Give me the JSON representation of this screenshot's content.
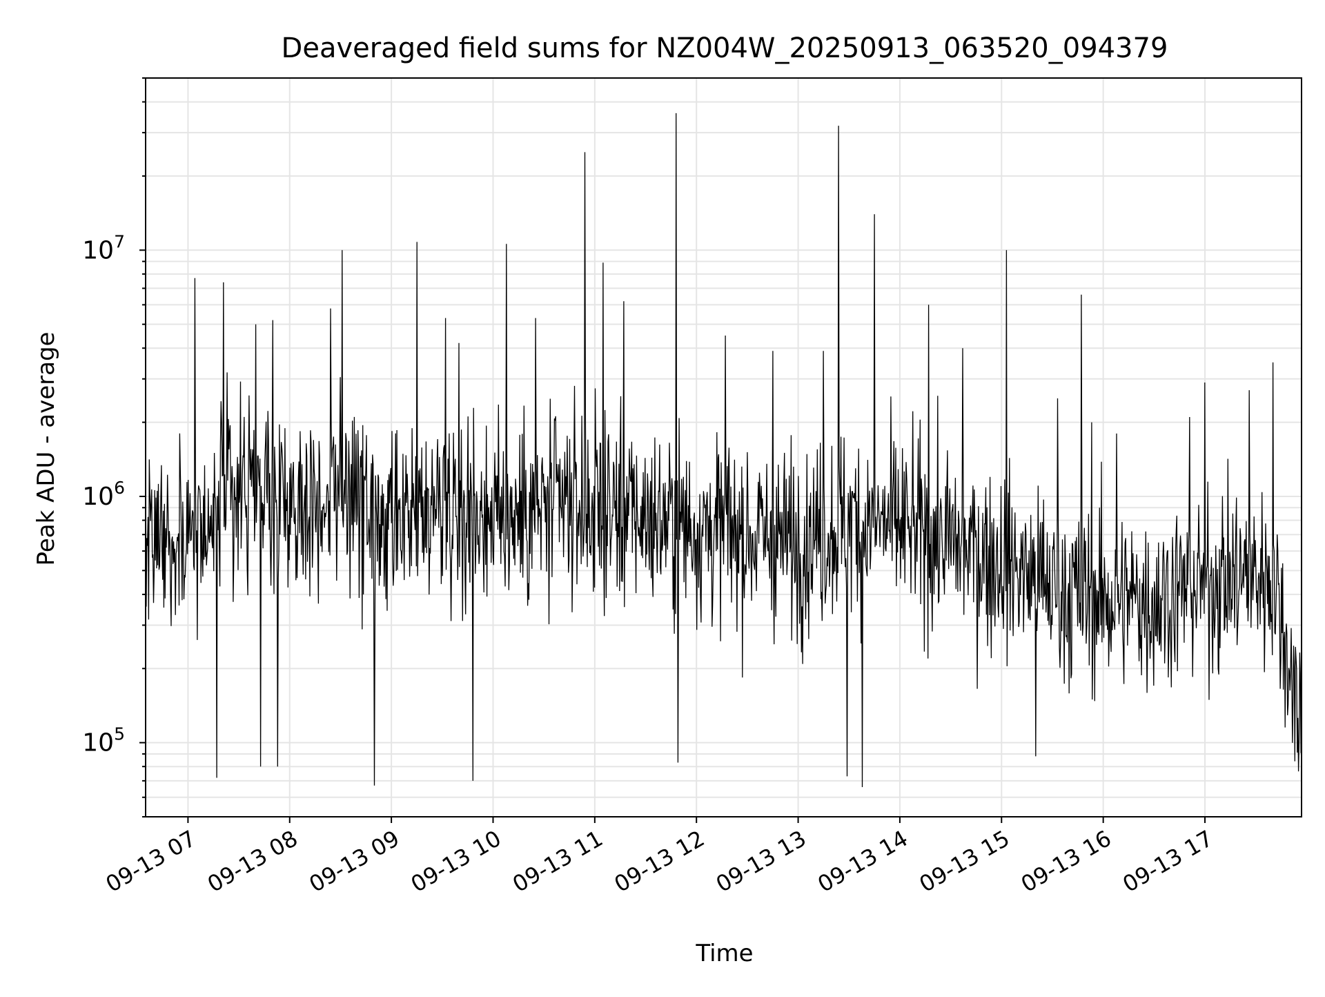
{
  "chart_data": {
    "type": "line",
    "title": "Deaveraged field sums for NZ004W_20250913_063520_094379",
    "xlabel": "Time",
    "ylabel": "Peak ADU - average",
    "x_tick_labels": [
      "09-13 07",
      "09-13 08",
      "09-13 09",
      "09-13 10",
      "09-13 11",
      "09-13 12",
      "09-13 13",
      "09-13 14",
      "09-13 15",
      "09-13 16",
      "09-13 17"
    ],
    "x_ticks": [
      "2025-09-13T07:00",
      "2025-09-13T08:00",
      "2025-09-13T09:00",
      "2025-09-13T10:00",
      "2025-09-13T11:00",
      "2025-09-13T12:00",
      "2025-09-13T13:00",
      "2025-09-13T14:00",
      "2025-09-13T15:00",
      "2025-09-13T16:00",
      "2025-09-13T17:00"
    ],
    "xlim": [
      "2025-09-13T06:35",
      "2025-09-13T17:57"
    ],
    "y_scale": "log",
    "ylim": [
      50000,
      50000000
    ],
    "y_ticks": [
      {
        "base": "10",
        "exp": "5",
        "value": 100000
      },
      {
        "base": "10",
        "exp": "6",
        "value": 1000000
      },
      {
        "base": "10",
        "exp": "7",
        "value": 10000000
      }
    ],
    "grid": true,
    "line_color": "#000000",
    "grid_color": "#e5e5e5",
    "series": [
      {
        "baseline": [
          {
            "x": "2025-09-13T06:35",
            "y": 800000
          },
          {
            "x": "2025-09-13T07:00",
            "y": 700000
          },
          {
            "x": "2025-09-13T07:30",
            "y": 1100000
          },
          {
            "x": "2025-09-13T08:00",
            "y": 900000
          },
          {
            "x": "2025-09-13T08:30",
            "y": 1100000
          },
          {
            "x": "2025-09-13T09:00",
            "y": 650000
          },
          {
            "x": "2025-09-13T09:30",
            "y": 1000000
          },
          {
            "x": "2025-09-13T10:00",
            "y": 850000
          },
          {
            "x": "2025-09-13T11:00",
            "y": 900000
          },
          {
            "x": "2025-09-13T12:00",
            "y": 750000
          },
          {
            "x": "2025-09-13T13:00",
            "y": 650000
          },
          {
            "x": "2025-09-13T13:30",
            "y": 800000
          },
          {
            "x": "2025-09-13T14:00",
            "y": 750000
          },
          {
            "x": "2025-09-13T14:30",
            "y": 650000
          },
          {
            "x": "2025-09-13T15:00",
            "y": 550000
          },
          {
            "x": "2025-09-13T15:30",
            "y": 420000
          },
          {
            "x": "2025-09-13T16:00",
            "y": 380000
          },
          {
            "x": "2025-09-13T16:30",
            "y": 380000
          },
          {
            "x": "2025-09-13T17:00",
            "y": 450000
          },
          {
            "x": "2025-09-13T17:40",
            "y": 480000
          },
          {
            "x": "2025-09-13T17:57",
            "y": 120000
          }
        ],
        "peaks": [
          {
            "x": "2025-09-13T07:04",
            "y": 7700000
          },
          {
            "x": "2025-09-13T07:21",
            "y": 7400000
          },
          {
            "x": "2025-09-13T07:40",
            "y": 5000000
          },
          {
            "x": "2025-09-13T07:50",
            "y": 5200000
          },
          {
            "x": "2025-09-13T08:24",
            "y": 5800000
          },
          {
            "x": "2025-09-13T08:31",
            "y": 10000000
          },
          {
            "x": "2025-09-13T09:15",
            "y": 10800000
          },
          {
            "x": "2025-09-13T09:32",
            "y": 5300000
          },
          {
            "x": "2025-09-13T09:40",
            "y": 4200000
          },
          {
            "x": "2025-09-13T10:08",
            "y": 10600000
          },
          {
            "x": "2025-09-13T10:25",
            "y": 5300000
          },
          {
            "x": "2025-09-13T10:54",
            "y": 25000000
          },
          {
            "x": "2025-09-13T11:05",
            "y": 8900000
          },
          {
            "x": "2025-09-13T11:17",
            "y": 6200000
          },
          {
            "x": "2025-09-13T11:48",
            "y": 36000000
          },
          {
            "x": "2025-09-13T12:17",
            "y": 4500000
          },
          {
            "x": "2025-09-13T12:45",
            "y": 3900000
          },
          {
            "x": "2025-09-13T13:15",
            "y": 3900000
          },
          {
            "x": "2025-09-13T13:24",
            "y": 32000000
          },
          {
            "x": "2025-09-13T13:45",
            "y": 14000000
          },
          {
            "x": "2025-09-13T14:17",
            "y": 6000000
          },
          {
            "x": "2025-09-13T14:37",
            "y": 4000000
          },
          {
            "x": "2025-09-13T15:03",
            "y": 10000000
          },
          {
            "x": "2025-09-13T15:33",
            "y": 2500000
          },
          {
            "x": "2025-09-13T15:47",
            "y": 6600000
          },
          {
            "x": "2025-09-13T15:53",
            "y": 2000000
          },
          {
            "x": "2025-09-13T16:08",
            "y": 1800000
          },
          {
            "x": "2025-09-13T16:51",
            "y": 2100000
          },
          {
            "x": "2025-09-13T17:00",
            "y": 2900000
          },
          {
            "x": "2025-09-13T17:26",
            "y": 2700000
          },
          {
            "x": "2025-09-13T17:40",
            "y": 3500000
          }
        ],
        "dips": [
          {
            "x": "2025-09-13T07:17",
            "y": 72000
          },
          {
            "x": "2025-09-13T07:43",
            "y": 80000
          },
          {
            "x": "2025-09-13T07:53",
            "y": 80000
          },
          {
            "x": "2025-09-13T08:50",
            "y": 67000
          },
          {
            "x": "2025-09-13T09:48",
            "y": 70000
          },
          {
            "x": "2025-09-13T11:49",
            "y": 83000
          },
          {
            "x": "2025-09-13T13:29",
            "y": 73000
          },
          {
            "x": "2025-09-13T13:38",
            "y": 66000
          },
          {
            "x": "2025-09-13T15:20",
            "y": 88000
          },
          {
            "x": "2025-09-13T17:53",
            "y": 84000
          }
        ]
      }
    ]
  }
}
